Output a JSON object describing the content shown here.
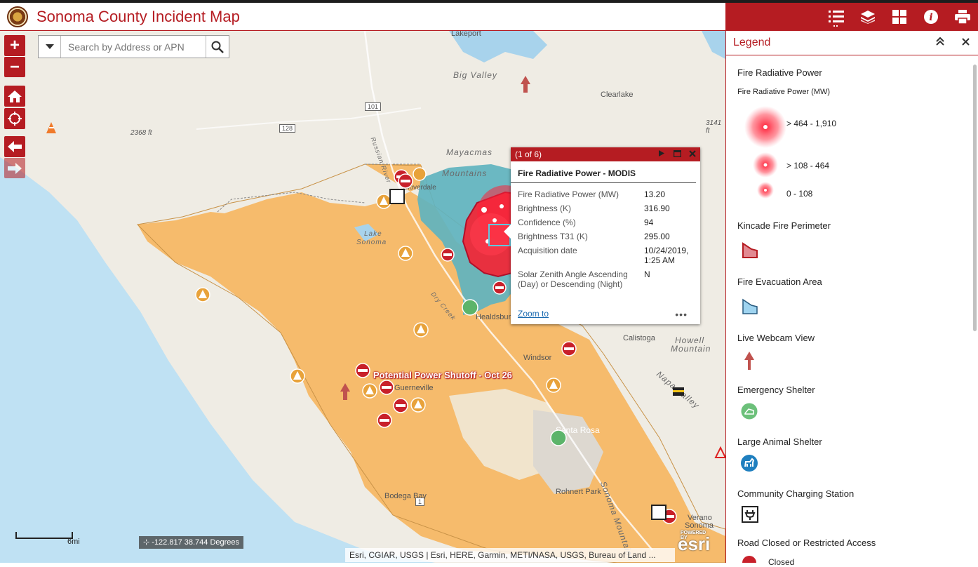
{
  "header": {
    "title": "Sonoma County Incident Map",
    "seal_icon": "county-seal-icon"
  },
  "toolbar": {
    "items": [
      "legend-list-icon",
      "layers-icon",
      "basemap-gallery-icon",
      "info-icon",
      "print-icon"
    ],
    "active": "legend-list-icon"
  },
  "search": {
    "placeholder": "Search by Address or APN",
    "value": ""
  },
  "map": {
    "places": [
      "Lakeport",
      "Big Valley",
      "Clearlake",
      "Windsor",
      "Healdsburg",
      "Guerneville",
      "Santa Rosa",
      "Rohnert Park",
      "Calistoga",
      "Bodega Bay",
      "Verano",
      "Sonoma",
      "Cloverdale"
    ],
    "terrain_labels": [
      "Mayacmas",
      "Mountains",
      "Lake",
      "Sonoma",
      "Howell",
      "Mountain",
      "Sonoma Mountains",
      "Napa Valley",
      "Dry Creek",
      "Russian River"
    ],
    "elevations": [
      "2368 ft",
      "3141 ft"
    ],
    "shields": [
      "101",
      "128",
      "1"
    ],
    "shutoff_label": "Potential Power Shutoff - Oct 26",
    "scale_label": "6mi",
    "coordinates": "-122.817 38.744 Degrees",
    "attribution": "Esri, CGIAR, USGS | Esri, HERE, Garmin, METI/NASA, USGS, Bureau of Land ...",
    "powered_by": "POWERED BY",
    "esri_logo": "esri",
    "colors": {
      "shutoff_area": "#f5b865",
      "evac_area": "#5fb3bf",
      "fire": "#ff2038",
      "accent": "#b51c22",
      "water": "#bfe1f3"
    }
  },
  "popup": {
    "counter": "(1 of 6)",
    "title": "Fire Radiative Power - MODIS",
    "fields": [
      {
        "label": "Fire Radiative Power (MW)",
        "value": "13.20"
      },
      {
        "label": "Brightness (K)",
        "value": "316.90"
      },
      {
        "label": "Confidence (%)",
        "value": "94"
      },
      {
        "label": "Brightness T31 (K)",
        "value": "295.00"
      },
      {
        "label": "Acquisition date",
        "value": "10/24/2019, 1:25 AM"
      },
      {
        "label": "Solar Zenith Angle Ascending (Day) or Descending (Night)",
        "value": "N"
      }
    ],
    "zoom_label": "Zoom to",
    "more": "•••"
  },
  "legend": {
    "title": "Legend",
    "sections": [
      {
        "heading": "Fire Radiative Power",
        "subheading": "Fire Radiative Power (MW)",
        "classes": [
          "> 464 - 1,910",
          "> 108 - 464",
          "0 - 108"
        ]
      },
      {
        "heading": "Kincade Fire Perimeter",
        "icon": "fire-perimeter-icon"
      },
      {
        "heading": "Fire Evacuation Area",
        "icon": "evacuation-area-icon"
      },
      {
        "heading": "Live Webcam View",
        "icon": "webcam-arrow-icon"
      },
      {
        "heading": "Emergency Shelter",
        "icon": "emergency-shelter-icon"
      },
      {
        "heading": "Large Animal Shelter",
        "icon": "animal-shelter-icon"
      },
      {
        "heading": "Community Charging Station",
        "icon": "charging-station-icon"
      },
      {
        "heading": "Road Closed or Restricted Access",
        "icon": "road-closed-icon"
      }
    ],
    "partial_item": "Closed"
  }
}
